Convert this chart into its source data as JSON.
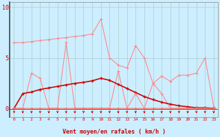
{
  "x": [
    0,
    1,
    2,
    3,
    4,
    5,
    6,
    7,
    8,
    9,
    10,
    11,
    12,
    13,
    14,
    15,
    16,
    17,
    18,
    19,
    20,
    21,
    22,
    23
  ],
  "line_top": [
    6.5,
    6.5,
    6.6,
    6.7,
    6.8,
    6.9,
    7.0,
    7.1,
    7.2,
    7.35,
    8.8,
    5.0,
    4.3,
    4.0,
    6.2,
    5.0,
    2.5,
    3.2,
    2.7,
    3.3,
    3.3,
    3.5,
    5.0,
    0.2
  ],
  "line_mid_upper": [
    0.05,
    0.05,
    3.5,
    3.0,
    0.05,
    0.05,
    6.5,
    0.05,
    0.05,
    0.05,
    0.05,
    0.05,
    3.7,
    0.05,
    0.05,
    0.05,
    2.5,
    1.5,
    0.05,
    0.05,
    0.05,
    0.05,
    0.05,
    0.05
  ],
  "line_mean": [
    0.05,
    1.5,
    1.65,
    1.9,
    2.05,
    2.2,
    2.35,
    2.5,
    2.6,
    2.75,
    3.0,
    2.8,
    2.4,
    2.0,
    1.6,
    1.2,
    0.9,
    0.65,
    0.45,
    0.3,
    0.2,
    0.1,
    0.1,
    0.05
  ],
  "line_bottom": [
    0.05,
    0.05,
    0.05,
    0.05,
    0.05,
    0.05,
    0.05,
    0.05,
    0.05,
    0.05,
    0.05,
    0.05,
    0.05,
    0.05,
    1.5,
    0.05,
    0.05,
    0.05,
    0.05,
    0.05,
    0.05,
    0.05,
    0.05,
    0.05
  ],
  "bg_color": "#cceeff",
  "grid_color": "#aacccc",
  "line_color_dark": "#cc0000",
  "line_color_light": "#ff8888",
  "arrow_color": "#cc0000",
  "xlabel": "Vent moyen/en rafales ( km/h )",
  "xlabel_color": "#cc0000",
  "tick_color": "#cc0000",
  "ylim": [
    -0.8,
    10.5
  ],
  "xlim": [
    -0.5,
    23.5
  ],
  "yticks": [
    0,
    5,
    10
  ],
  "xticks": [
    0,
    1,
    2,
    3,
    4,
    5,
    6,
    7,
    8,
    9,
    10,
    11,
    12,
    13,
    14,
    15,
    16,
    17,
    18,
    19,
    20,
    21,
    22,
    23
  ]
}
